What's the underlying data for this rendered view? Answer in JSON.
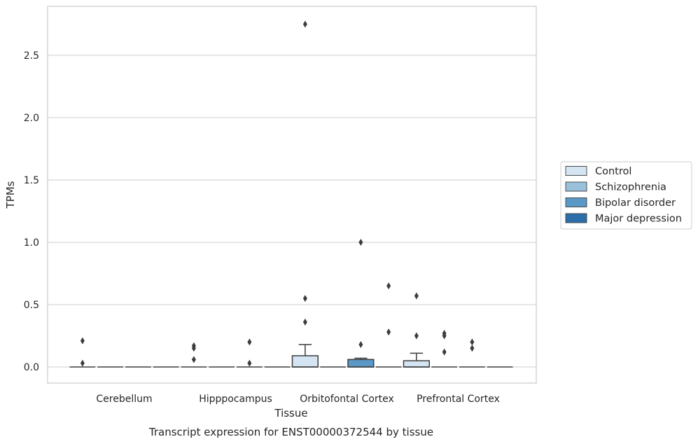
{
  "chart_data": {
    "type": "box",
    "xlabel": "Tissue",
    "ylabel": "TPMs",
    "caption": "Transcript expression for ENST00000372544 by tissue",
    "ylim": [
      -0.13,
      2.88
    ],
    "yticks": [
      0.0,
      0.5,
      1.0,
      1.5,
      2.0,
      2.5
    ],
    "ytick_labels": [
      "0.0",
      "0.5",
      "1.0",
      "1.5",
      "2.0",
      "2.5"
    ],
    "grid": "horizontal",
    "legend_placement": "right",
    "categories": [
      "Cerebellum",
      "Hipppocampus",
      "Orbitofontal Cortex",
      "Prefrontal Cortex"
    ],
    "series": [
      {
        "name": "Control",
        "color": "#d4e4f3",
        "boxes": [
          {
            "q1": 0,
            "median": 0,
            "q3": 0,
            "whisker_low": 0,
            "whisker_high": 0,
            "outliers": [
              0.21,
              0.03
            ]
          },
          {
            "q1": 0,
            "median": 0,
            "q3": 0,
            "whisker_low": 0,
            "whisker_high": 0,
            "outliers": [
              0.17,
              0.15,
              0.06
            ]
          },
          {
            "q1": 0,
            "median": 0,
            "q3": 0.09,
            "whisker_low": 0,
            "whisker_high": 0.18,
            "outliers": [
              0.55,
              0.36,
              2.75
            ]
          },
          {
            "q1": 0,
            "median": 0,
            "q3": 0.05,
            "whisker_low": 0,
            "whisker_high": 0.11,
            "outliers": [
              0.57,
              0.25
            ]
          }
        ]
      },
      {
        "name": "Schizophrenia",
        "color": "#9ac1dc",
        "boxes": [
          {
            "q1": 0,
            "median": 0,
            "q3": 0,
            "whisker_low": 0,
            "whisker_high": 0,
            "outliers": []
          },
          {
            "q1": 0,
            "median": 0,
            "q3": 0,
            "whisker_low": 0,
            "whisker_high": 0,
            "outliers": []
          },
          {
            "q1": 0,
            "median": 0,
            "q3": 0,
            "whisker_low": 0,
            "whisker_high": 0,
            "outliers": []
          },
          {
            "q1": 0,
            "median": 0,
            "q3": 0,
            "whisker_low": 0,
            "whisker_high": 0,
            "outliers": [
              0.27,
              0.25,
              0.12
            ]
          }
        ]
      },
      {
        "name": "Bipolar disorder",
        "color": "#5a98c6",
        "boxes": [
          {
            "q1": 0,
            "median": 0,
            "q3": 0,
            "whisker_low": 0,
            "whisker_high": 0,
            "outliers": []
          },
          {
            "q1": 0,
            "median": 0,
            "q3": 0,
            "whisker_low": 0,
            "whisker_high": 0,
            "outliers": [
              0.2,
              0.03
            ]
          },
          {
            "q1": 0,
            "median": 0,
            "q3": 0.06,
            "whisker_low": 0,
            "whisker_high": 0.07,
            "outliers": [
              1.0,
              0.18
            ]
          },
          {
            "q1": 0,
            "median": 0,
            "q3": 0,
            "whisker_low": 0,
            "whisker_high": 0,
            "outliers": [
              0.2,
              0.15
            ]
          }
        ]
      },
      {
        "name": "Major depression",
        "color": "#2c6fab",
        "boxes": [
          {
            "q1": 0,
            "median": 0,
            "q3": 0,
            "whisker_low": 0,
            "whisker_high": 0,
            "outliers": []
          },
          {
            "q1": 0,
            "median": 0,
            "q3": 0,
            "whisker_low": 0,
            "whisker_high": 0,
            "outliers": []
          },
          {
            "q1": 0,
            "median": 0,
            "q3": 0,
            "whisker_low": 0,
            "whisker_high": 0,
            "outliers": [
              0.65,
              0.28
            ]
          },
          {
            "q1": 0,
            "median": 0,
            "q3": 0,
            "whisker_low": 0,
            "whisker_high": 0,
            "outliers": []
          }
        ]
      }
    ]
  },
  "colors": {
    "grid": "#cccccc",
    "frame": "#cccccc",
    "stroke": "#3d3d3d"
  }
}
